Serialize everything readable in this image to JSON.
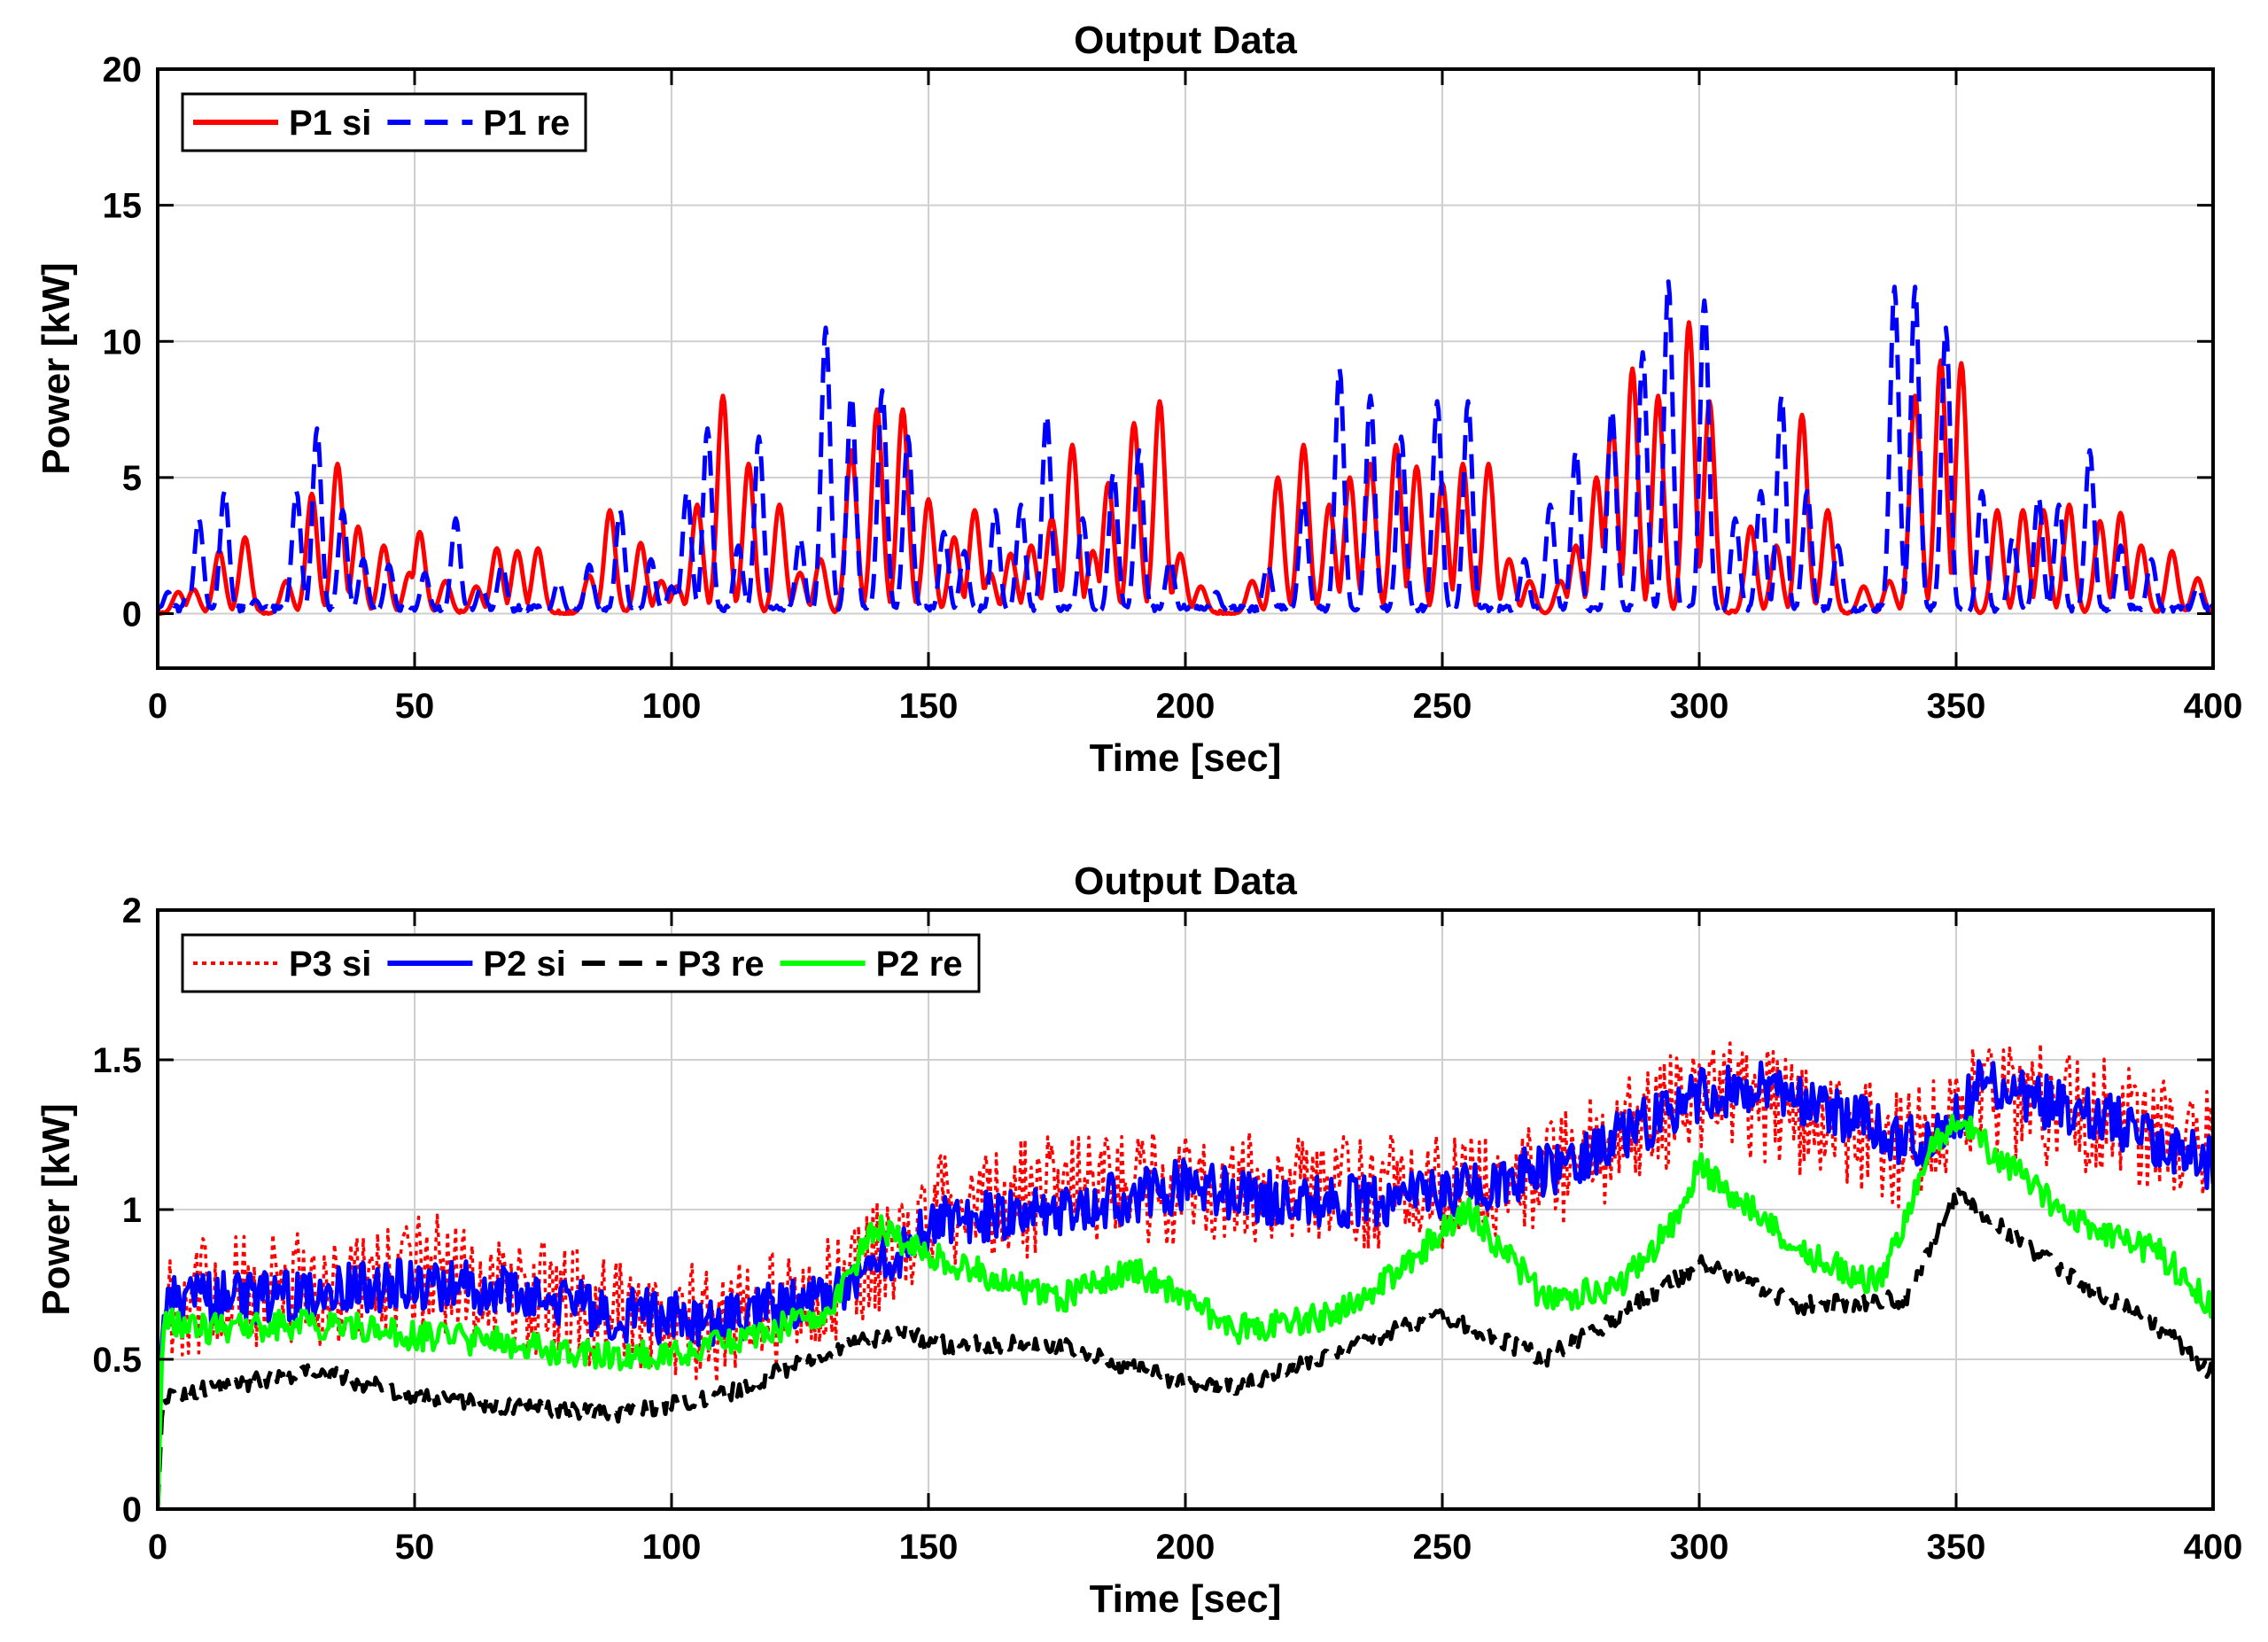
{
  "chart_data": [
    {
      "type": "line",
      "title": "Output Data",
      "xlabel": "Time [sec]",
      "ylabel": "Power [kW]",
      "xlim": [
        0,
        400
      ],
      "ylim": [
        -2,
        20
      ],
      "xticks": [
        0,
        50,
        100,
        150,
        200,
        250,
        300,
        350,
        400
      ],
      "yticks": [
        0,
        5,
        10,
        15,
        20
      ],
      "grid": true,
      "legend_position": "top-left",
      "series": [
        {
          "name": "P1 si",
          "color": "#ff0000",
          "style": "solid",
          "kind": "pulses",
          "baseline": 0,
          "pulse_width": 2.2,
          "peaks": [
            [
              4,
              0.8
            ],
            [
              7,
              0.9
            ],
            [
              12,
              2.3
            ],
            [
              17,
              2.8
            ],
            [
              25,
              1.2
            ],
            [
              30,
              4.4
            ],
            [
              35,
              5.5
            ],
            [
              39,
              3.2
            ],
            [
              44,
              2.5
            ],
            [
              49,
              1.5
            ],
            [
              51,
              3.0
            ],
            [
              56,
              1.2
            ],
            [
              62,
              1.0
            ],
            [
              66,
              2.4
            ],
            [
              70,
              2.3
            ],
            [
              74,
              2.4
            ],
            [
              84,
              1.4
            ],
            [
              88,
              3.8
            ],
            [
              94,
              2.6
            ],
            [
              98,
              1.2
            ],
            [
              101,
              1.0
            ],
            [
              105,
              4.0
            ],
            [
              110,
              8.0
            ],
            [
              115,
              5.5
            ],
            [
              121,
              4.0
            ],
            [
              125,
              1.5
            ],
            [
              129,
              2.0
            ],
            [
              135,
              6.0
            ],
            [
              140,
              7.5
            ],
            [
              145,
              7.5
            ],
            [
              150,
              4.2
            ],
            [
              155,
              2.8
            ],
            [
              159,
              3.8
            ],
            [
              162,
              1.5
            ],
            [
              166,
              2.2
            ],
            [
              170,
              2.5
            ],
            [
              174,
              3.5
            ],
            [
              178,
              6.2
            ],
            [
              182,
              2.3
            ],
            [
              185,
              4.8
            ],
            [
              190,
              7.0
            ],
            [
              195,
              7.8
            ],
            [
              199,
              2.2
            ],
            [
              203,
              1.0
            ],
            [
              213,
              1.2
            ],
            [
              218,
              5.0
            ],
            [
              223,
              6.2
            ],
            [
              228,
              4.0
            ],
            [
              232,
              5.0
            ],
            [
              236,
              5.5
            ],
            [
              241,
              6.2
            ],
            [
              245,
              5.4
            ],
            [
              250,
              4.8
            ],
            [
              254,
              5.5
            ],
            [
              259,
              5.5
            ],
            [
              263,
              2.0
            ],
            [
              267,
              1.2
            ],
            [
              273,
              1.2
            ],
            [
              276,
              2.5
            ],
            [
              280,
              5.0
            ],
            [
              283,
              7.0
            ],
            [
              287,
              9.0
            ],
            [
              292,
              8.0
            ],
            [
              298,
              10.7
            ],
            [
              302,
              7.8
            ],
            [
              310,
              3.2
            ],
            [
              315,
              2.5
            ],
            [
              320,
              7.3
            ],
            [
              325,
              3.8
            ],
            [
              332,
              1.0
            ],
            [
              337,
              1.2
            ],
            [
              342,
              8.0
            ],
            [
              347,
              9.3
            ],
            [
              351,
              9.2
            ],
            [
              358,
              3.8
            ],
            [
              363,
              3.8
            ],
            [
              367,
              3.8
            ],
            [
              372,
              4.0
            ],
            [
              378,
              3.4
            ],
            [
              382,
              3.7
            ],
            [
              386,
              2.5
            ],
            [
              392,
              2.3
            ],
            [
              397,
              1.3
            ]
          ]
        },
        {
          "name": "P1 re",
          "color": "#0000ff",
          "style": "dashed",
          "kind": "pulses",
          "baseline": 0.2,
          "pulse_width": 1.8,
          "peaks": [
            [
              2,
              0.8
            ],
            [
              6,
              0.8
            ],
            [
              8,
              3.5
            ],
            [
              13,
              4.5
            ],
            [
              19,
              0.5
            ],
            [
              27,
              4.5
            ],
            [
              31,
              6.8
            ],
            [
              36,
              3.8
            ],
            [
              40,
              2.0
            ],
            [
              45,
              1.8
            ],
            [
              52,
              1.5
            ],
            [
              58,
              3.5
            ],
            [
              63,
              1.0
            ],
            [
              67,
              1.8
            ],
            [
              78,
              1.2
            ],
            [
              84,
              1.8
            ],
            [
              90,
              3.8
            ],
            [
              96,
              2.0
            ],
            [
              100,
              1.0
            ],
            [
              103,
              4.5
            ],
            [
              107,
              6.8
            ],
            [
              113,
              2.5
            ],
            [
              117,
              6.5
            ],
            [
              125,
              2.8
            ],
            [
              130,
              10.5
            ],
            [
              135,
              8.0
            ],
            [
              141,
              8.2
            ],
            [
              146,
              6.5
            ],
            [
              153,
              3.0
            ],
            [
              157,
              2.3
            ],
            [
              163,
              3.8
            ],
            [
              168,
              4.0
            ],
            [
              173,
              7.3
            ],
            [
              180,
              3.5
            ],
            [
              186,
              5.2
            ],
            [
              191,
              6.0
            ],
            [
              197,
              2.0
            ],
            [
              206,
              0.8
            ],
            [
              216,
              1.8
            ],
            [
              223,
              4.2
            ],
            [
              230,
              9.0
            ],
            [
              236,
              8.0
            ],
            [
              242,
              6.5
            ],
            [
              249,
              7.8
            ],
            [
              255,
              7.8
            ],
            [
              266,
              2.0
            ],
            [
              271,
              4.0
            ],
            [
              276,
              6.0
            ],
            [
              283,
              7.5
            ],
            [
              289,
              9.6
            ],
            [
              294,
              12.2
            ],
            [
              301,
              11.5
            ],
            [
              307,
              3.5
            ],
            [
              312,
              4.5
            ],
            [
              316,
              8.0
            ],
            [
              321,
              4.5
            ],
            [
              327,
              2.5
            ],
            [
              338,
              12.0
            ],
            [
              342,
              12.0
            ],
            [
              348,
              10.5
            ],
            [
              355,
              4.5
            ],
            [
              361,
              2.8
            ],
            [
              366,
              4.3
            ],
            [
              370,
              4.0
            ],
            [
              376,
              6.0
            ],
            [
              382,
              2.5
            ],
            [
              388,
              2.0
            ],
            [
              397,
              1.0
            ]
          ]
        }
      ]
    },
    {
      "type": "line",
      "title": "Output Data",
      "xlabel": "Time [sec]",
      "ylabel": "Power [kW]",
      "xlim": [
        0,
        400
      ],
      "ylim": [
        0,
        2
      ],
      "xticks": [
        0,
        50,
        100,
        150,
        200,
        250,
        300,
        350,
        400
      ],
      "yticks": [
        0,
        0.5,
        1,
        1.5,
        2
      ],
      "grid": true,
      "legend_position": "top-left",
      "series": [
        {
          "name": "P3 si",
          "color": "#ff0000",
          "style": "dotted",
          "kind": "noisy",
          "noise": 0.2,
          "x": [
            0,
            1,
            10,
            30,
            50,
            70,
            90,
            110,
            130,
            145,
            150,
            175,
            200,
            225,
            250,
            275,
            300,
            320,
            340,
            355,
            380,
            400
          ],
          "y": [
            0,
            0.7,
            0.72,
            0.72,
            0.8,
            0.72,
            0.65,
            0.62,
            0.72,
            0.88,
            1.0,
            1.05,
            1.08,
            1.06,
            1.05,
            1.15,
            1.4,
            1.3,
            1.2,
            1.4,
            1.3,
            1.2
          ]
        },
        {
          "name": "P2 si",
          "color": "#0000ff",
          "style": "solid",
          "kind": "noisy",
          "noise": 0.09,
          "x": [
            0,
            1,
            10,
            30,
            50,
            70,
            90,
            110,
            130,
            145,
            150,
            175,
            200,
            225,
            250,
            275,
            300,
            310,
            330,
            345,
            355,
            380,
            400
          ],
          "y": [
            0,
            0.68,
            0.7,
            0.72,
            0.76,
            0.72,
            0.65,
            0.63,
            0.72,
            0.86,
            0.95,
            1.0,
            1.08,
            1.02,
            1.05,
            1.15,
            1.38,
            1.42,
            1.3,
            1.2,
            1.42,
            1.3,
            1.15
          ]
        },
        {
          "name": "P3 re",
          "color": "#000000",
          "style": "dashed",
          "kind": "noisy",
          "noise": 0.03,
          "x": [
            0,
            1,
            10,
            30,
            50,
            70,
            90,
            110,
            130,
            145,
            150,
            175,
            200,
            210,
            225,
            250,
            270,
            285,
            300,
            320,
            340,
            350,
            370,
            390,
            400
          ],
          "y": [
            0,
            0.38,
            0.4,
            0.46,
            0.38,
            0.34,
            0.32,
            0.38,
            0.52,
            0.6,
            0.55,
            0.55,
            0.42,
            0.4,
            0.5,
            0.65,
            0.5,
            0.65,
            0.82,
            0.68,
            0.7,
            1.05,
            0.8,
            0.6,
            0.45
          ]
        },
        {
          "name": "P2 re",
          "color": "#00ff00",
          "style": "solid",
          "kind": "noisy",
          "noise": 0.05,
          "x": [
            0,
            1,
            10,
            30,
            50,
            70,
            90,
            110,
            120,
            130,
            140,
            150,
            175,
            190,
            210,
            230,
            245,
            255,
            270,
            285,
            295,
            300,
            320,
            335,
            345,
            350,
            370,
            390,
            400
          ],
          "y": [
            0,
            0.62,
            0.6,
            0.62,
            0.58,
            0.55,
            0.5,
            0.55,
            0.6,
            0.65,
            0.95,
            0.85,
            0.7,
            0.8,
            0.6,
            0.65,
            0.85,
            1.0,
            0.7,
            0.75,
            0.95,
            1.15,
            0.85,
            0.75,
            1.2,
            1.3,
            1.0,
            0.85,
            0.68
          ]
        }
      ]
    }
  ]
}
